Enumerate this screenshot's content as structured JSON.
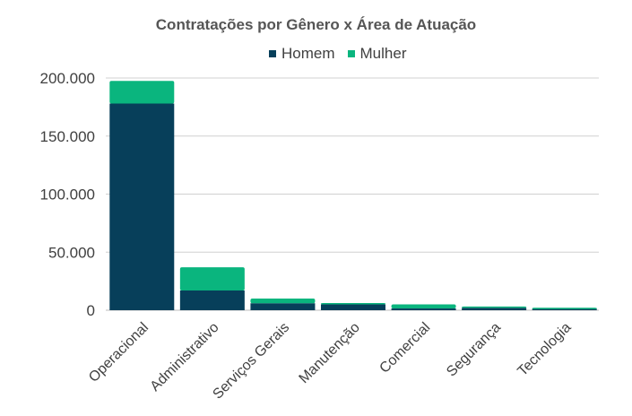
{
  "chart_data": {
    "type": "bar",
    "stacked": true,
    "title": "Contratações por Gênero x Área de Atuação",
    "categories": [
      "Operacional",
      "Administrativo",
      "Serviços Gerais",
      "Manutenção",
      "Comercial",
      "Segurança",
      "Tecnologia"
    ],
    "series": [
      {
        "name": "Homem",
        "color": "#073f5a",
        "values": [
          178000,
          17000,
          6000,
          5000,
          1500,
          2000,
          1000
        ]
      },
      {
        "name": "Mulher",
        "color": "#0ab57e",
        "values": [
          19500,
          20000,
          4000,
          500,
          3500,
          1000,
          500
        ]
      }
    ],
    "ylim": [
      0,
      200000
    ],
    "yticks": [
      0,
      50000,
      100000,
      150000,
      200000
    ],
    "ytick_labels": [
      "0",
      "50.000",
      "100.000",
      "150.000",
      "200.000"
    ],
    "grid": true,
    "legend": "top"
  }
}
